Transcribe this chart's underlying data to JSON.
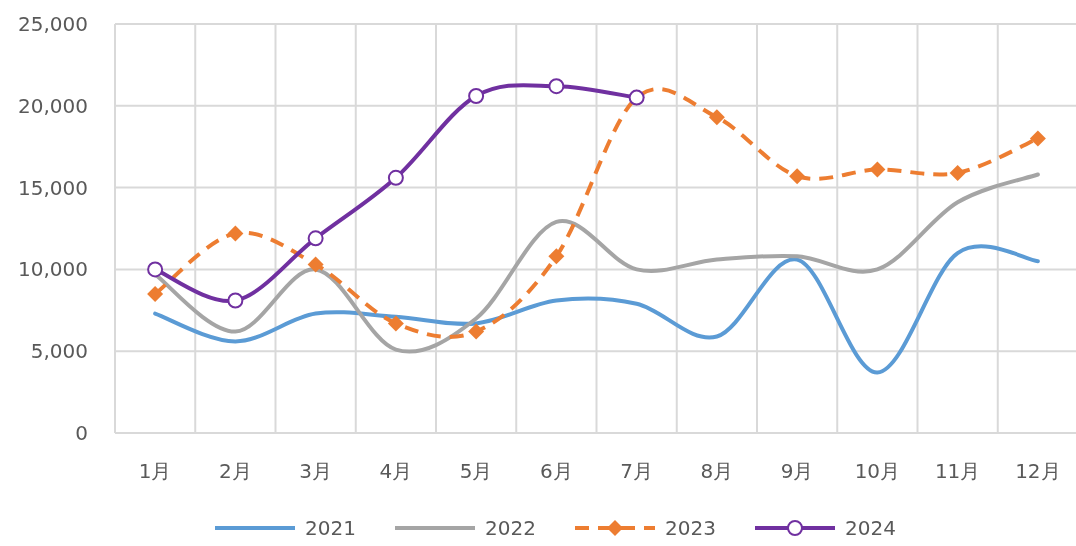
{
  "chart_data": {
    "type": "line",
    "categories": [
      "1月",
      "2月",
      "3月",
      "4月",
      "5月",
      "6月",
      "7月",
      "8月",
      "9月",
      "10月",
      "11月",
      "12月"
    ],
    "series": [
      {
        "name": "2021",
        "color": "#5b9bd5",
        "values": [
          7300,
          5600,
          7300,
          7100,
          6700,
          8100,
          7900,
          5900,
          10600,
          3700,
          11000,
          10500
        ]
      },
      {
        "name": "2022",
        "color": "#a5a5a5",
        "values": [
          9700,
          6200,
          10000,
          5100,
          7000,
          12900,
          10000,
          10600,
          10800,
          10000,
          14100,
          15800
        ]
      },
      {
        "name": "2023",
        "color": "#ed7d31",
        "marker": "diamond",
        "line_style": "dashed",
        "values": [
          8500,
          12200,
          10300,
          6700,
          6200,
          10800,
          20500,
          19300,
          15700,
          16100,
          15900,
          18000
        ]
      },
      {
        "name": "2024",
        "color": "#7030a0",
        "marker": "circle",
        "values": [
          10000,
          8100,
          11900,
          15600,
          20600,
          21200,
          20500,
          null,
          null,
          null,
          null,
          null
        ]
      }
    ],
    "ylim": [
      0,
      25000
    ],
    "yticks": [
      {
        "value": 0,
        "label": "0"
      },
      {
        "value": 5000,
        "label": "5,000"
      },
      {
        "value": 10000,
        "label": "10,000"
      },
      {
        "value": 15000,
        "label": "15,000"
      },
      {
        "value": 20000,
        "label": "20,000"
      },
      {
        "value": 25000,
        "label": "25,000"
      }
    ],
    "grid": true,
    "legend": "bottom",
    "marker": "none",
    "line_style": "solid"
  }
}
